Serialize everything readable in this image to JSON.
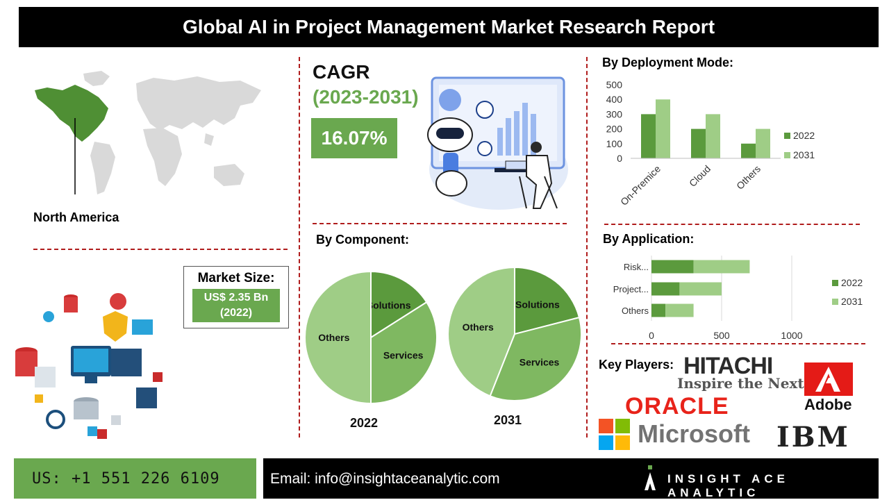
{
  "title": "Global AI in Project Management Market Research Report",
  "region": {
    "label": "North America"
  },
  "cagr": {
    "title": "CAGR",
    "period": "(2023-2031)",
    "value": "16.07%"
  },
  "market_size": {
    "label": "Market Size:",
    "value_line1": "US$ 2.35 Bn",
    "value_line2": "(2022)"
  },
  "colors": {
    "dark_green": "#5b9a3d",
    "light_green": "#9fcd86",
    "accent_green": "#6aa84f",
    "red_dash": "#b01c1c"
  },
  "deployment": {
    "heading": "By Deployment Mode:"
  },
  "component": {
    "heading": "By Component:"
  },
  "application": {
    "heading": "By  Application:"
  },
  "key_players": {
    "heading": "Key Players:",
    "hitachi": "HITACHI",
    "hitachi_tag": "Inspire the Next",
    "adobe": "Adobe",
    "oracle": "ORACLE",
    "microsoft": "Microsoft",
    "ibm": "IBM"
  },
  "footer": {
    "phone": "US: +1 551 226 6109",
    "email": "Email: info@insightaceanalytic.com",
    "brand": "INSIGHT ACE ANALYTIC"
  },
  "chart_data": [
    {
      "type": "bar",
      "categories": [
        "On-Premice",
        "Cloud",
        "Others"
      ],
      "series": [
        {
          "name": "2022",
          "values": [
            300,
            200,
            100
          ]
        },
        {
          "name": "2031",
          "values": [
            400,
            300,
            200
          ]
        }
      ],
      "ylim": [
        0,
        500
      ],
      "yticks": [
        "0",
        "100",
        "200",
        "300",
        "400",
        "500"
      ],
      "legend": "right"
    },
    {
      "type": "pie",
      "title": "2022",
      "labels": [
        "Solutions",
        "Services",
        "Others"
      ],
      "values": [
        16,
        34,
        50
      ]
    },
    {
      "type": "pie",
      "title": "2031",
      "labels": [
        "Solutions",
        "Services",
        "Others"
      ],
      "values": [
        21,
        35,
        44
      ]
    },
    {
      "type": "bar",
      "orientation": "horizontal",
      "stacked": true,
      "categories": [
        "Risk...",
        "Project...",
        "Others"
      ],
      "series": [
        {
          "name": "2022",
          "values": [
            300,
            200,
            100
          ]
        },
        {
          "name": "2031",
          "values": [
            400,
            300,
            200
          ]
        }
      ],
      "xlim": [
        0,
        1000
      ],
      "xticks": [
        "0",
        "500",
        "1000"
      ],
      "legend": "right"
    }
  ]
}
